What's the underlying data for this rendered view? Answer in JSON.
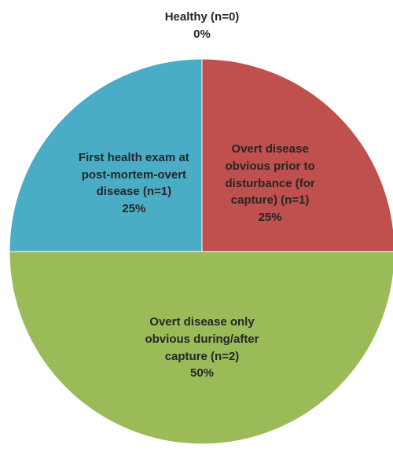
{
  "chart_data": {
    "type": "pie",
    "categories": [
      "Healthy (n=0)",
      "Overt disease obvious prior to disturbance (for capture) (n=1)",
      "Overt disease only obvious during/after capture (n=2)",
      "First health exam at post-mortem-overt disease (n=1)"
    ],
    "values": [
      0,
      25,
      50,
      25
    ],
    "value_labels": [
      "0%",
      "25%",
      "50%",
      "25%"
    ],
    "colors": [
      "#8064a2",
      "#c0504d",
      "#9bbb59",
      "#4bacc6"
    ]
  }
}
